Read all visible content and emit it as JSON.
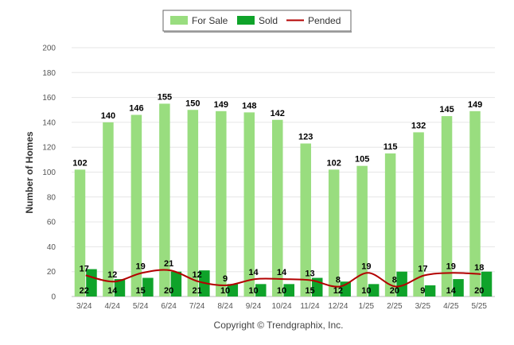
{
  "chart_data": {
    "type": "bar",
    "ylabel": "Number of Homes",
    "ylim": [
      0,
      200
    ],
    "yticks": [
      0,
      20,
      40,
      60,
      80,
      100,
      120,
      140,
      160,
      180,
      200
    ],
    "categories": [
      "3/24",
      "4/24",
      "5/24",
      "6/24",
      "7/24",
      "8/24",
      "9/24",
      "10/24",
      "11/24",
      "12/24",
      "1/25",
      "2/25",
      "3/25",
      "4/25",
      "5/25"
    ],
    "series": [
      {
        "name": "For Sale",
        "kind": "bar",
        "color": "#99dd7f",
        "values": [
          102,
          140,
          146,
          155,
          150,
          149,
          148,
          142,
          123,
          102,
          105,
          115,
          132,
          145,
          149
        ]
      },
      {
        "name": "Sold",
        "kind": "bar",
        "color": "#0fa32a",
        "values": [
          22,
          14,
          15,
          20,
          21,
          10,
          10,
          10,
          15,
          12,
          10,
          20,
          9,
          14,
          20
        ]
      },
      {
        "name": "Pended",
        "kind": "line",
        "color": "#b30000",
        "values": [
          17,
          12,
          19,
          21,
          12,
          9,
          14,
          14,
          13,
          8,
          19,
          8,
          17,
          19,
          18
        ]
      }
    ],
    "legend": "top-center",
    "grid": true
  },
  "copyright": "Copyright © Trendgraphix, Inc."
}
